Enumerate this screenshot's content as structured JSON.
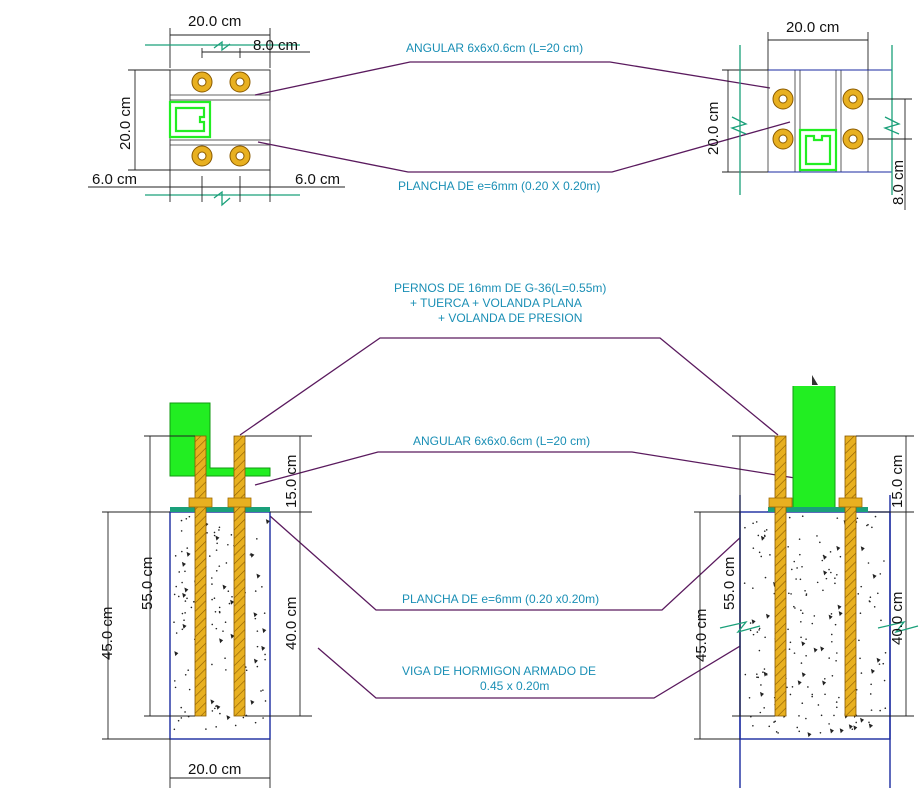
{
  "top_left": {
    "dims": {
      "width_top": "20.0 cm",
      "inner_top": "8.0 cm",
      "height_left": "20.0 cm",
      "bottom_left": "6.0 cm",
      "bottom_right": "6.0 cm"
    }
  },
  "top_right": {
    "dims": {
      "width_top": "20.0 cm",
      "height_left": "20.0 cm",
      "right_side": "8.0 cm"
    }
  },
  "labels": {
    "angular_top": "ANGULAR 6x6x0.6cm (L=20 cm)",
    "plancha_top": "PLANCHA DE e=6mm (0.20 X 0.20m)",
    "pernos_line1": "PERNOS DE 16mm DE G-36(L=0.55m)",
    "pernos_line2": "+ TUERCA + VOLANDA PLANA",
    "pernos_line3": "+ VOLANDA DE PRESION",
    "angular_mid": "ANGULAR 6x6x0.6cm (L=20 cm)",
    "plancha_mid": "PLANCHA DE e=6mm (0.20 x0.20m)",
    "viga_line1": "VIGA DE HORMIGON ARMADO DE",
    "viga_line2": "0.45 x 0.20m"
  },
  "bottom_left": {
    "dims": {
      "total_45": "45.0 cm",
      "bolt_55": "55.0 cm",
      "top_15": "15.0 cm",
      "embed_40": "40.0 cm",
      "width_20": "20.0 cm"
    }
  },
  "bottom_right": {
    "dims": {
      "total_45": "45.0 cm",
      "bolt_55": "55.0 cm",
      "top_15": "15.0 cm",
      "embed_40": "40.0 cm"
    }
  },
  "colors": {
    "steel_green": "#22ee22",
    "bolt_gold": "#e8b020",
    "label_blue": "#1a8fb5",
    "leader_purple": "#5a1a5e",
    "concrete_outline": "#1a2aa0"
  }
}
